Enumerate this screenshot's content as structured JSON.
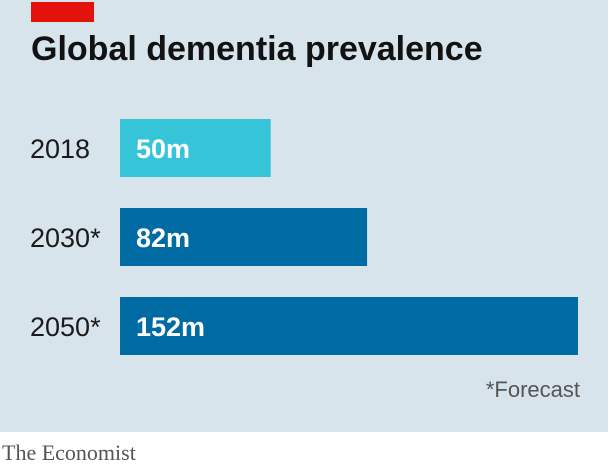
{
  "chart_data": {
    "type": "bar",
    "orientation": "horizontal",
    "title": "Global dementia prevalence",
    "categories": [
      "2018",
      "2030*",
      "2050*"
    ],
    "values": [
      50,
      82,
      152
    ],
    "value_labels": [
      "50m",
      "82m",
      "152m"
    ],
    "unit": "m",
    "bar_colors": [
      "#36c4d8",
      "#006ba2",
      "#006ba2"
    ],
    "xlim": [
      0,
      152
    ],
    "grid": false,
    "footnote": "*Forecast"
  },
  "source": {
    "brand": "The Economist"
  },
  "colors": {
    "background": "#d8e4ec",
    "accent_red": "#e3120b"
  }
}
